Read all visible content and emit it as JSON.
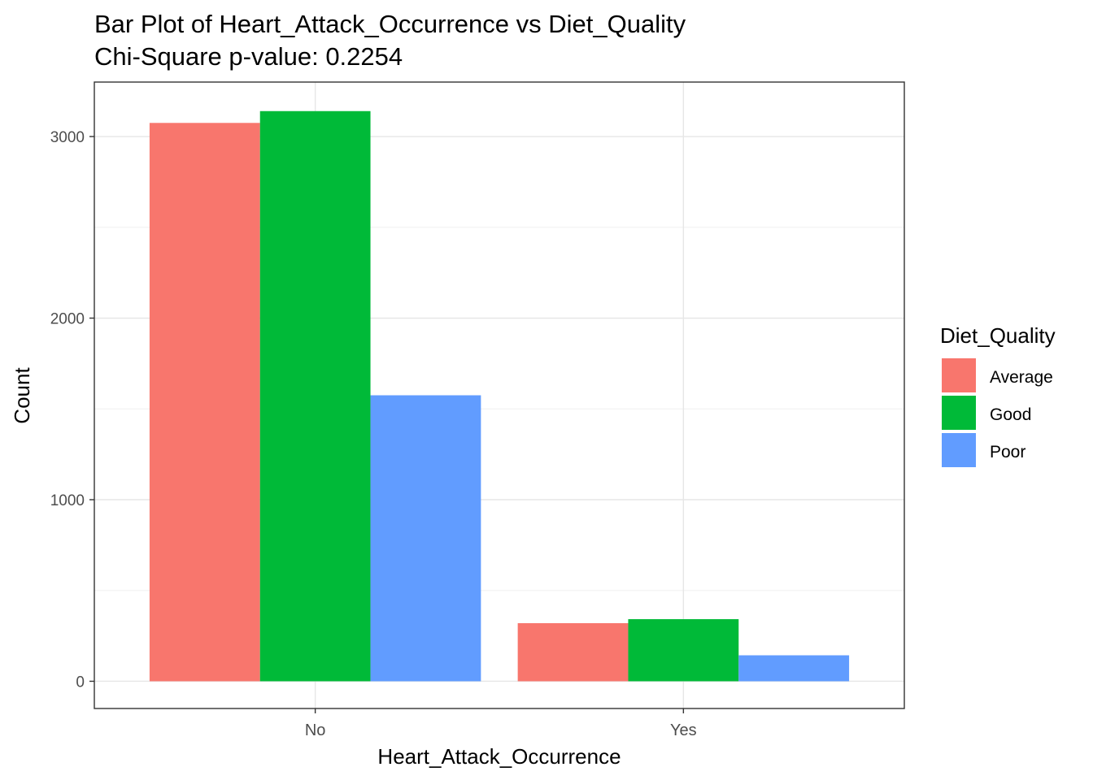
{
  "chart_data": {
    "type": "bar",
    "title": "Bar Plot of Heart_Attack_Occurrence vs Diet_Quality",
    "subtitle": "Chi-Square p-value: 0.2254",
    "xlabel": "Heart_Attack_Occurrence",
    "ylabel": "Count",
    "categories": [
      "No",
      "Yes"
    ],
    "series": [
      {
        "name": "Average",
        "color": "#F8766D",
        "values": [
          3075,
          320
        ]
      },
      {
        "name": "Good",
        "color": "#00BA38",
        "values": [
          3140,
          342
        ]
      },
      {
        "name": "Poor",
        "color": "#619CFF",
        "values": [
          1575,
          143
        ]
      }
    ],
    "yticks": [
      0,
      1000,
      2000,
      3000
    ],
    "ytick_labels": [
      "0",
      "1000",
      "2000",
      "3000"
    ],
    "ylim": [
      -150,
      3300
    ],
    "grid": true,
    "legend": {
      "title": "Diet_Quality",
      "position": "right"
    }
  }
}
